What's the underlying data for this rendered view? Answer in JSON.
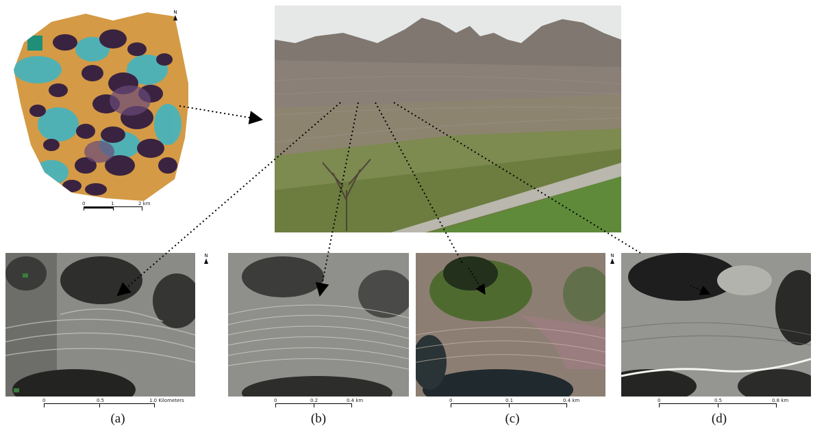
{
  "figure": {
    "map": {
      "north_label": "N",
      "scale": {
        "zero": "0",
        "mid": "1",
        "end": "2 km"
      }
    },
    "panels": [
      {
        "caption": "(a)",
        "north_label": "N",
        "scale": {
          "zero": "0",
          "mid": "0.5",
          "end": "1.0 Kilometers"
        }
      },
      {
        "caption": "(b)",
        "scale": {
          "zero": "0",
          "mid": "0.2",
          "end": "0.4 km"
        }
      },
      {
        "caption": "(c)",
        "north_label": "N",
        "scale": {
          "zero": "0",
          "mid": "0.1",
          "end": "0.4 km"
        }
      },
      {
        "caption": "(d)",
        "north_label": "N",
        "scale": {
          "zero": "0",
          "mid": "0.5",
          "end": "0.8 km"
        }
      }
    ]
  },
  "colors": {
    "map_orange": "#d49a45",
    "map_cyan": "#39b6c8",
    "map_purple": "#3a2340",
    "photo_sky": "#e6e8e8",
    "photo_mountain": "#7f7770",
    "field_green": "#5f8a3a",
    "arrow": "#000000"
  }
}
